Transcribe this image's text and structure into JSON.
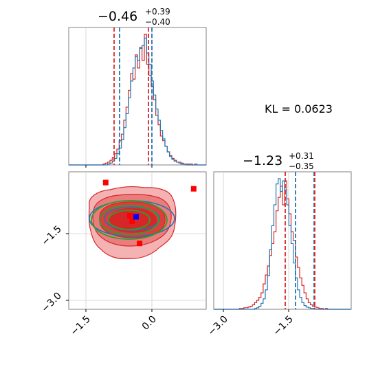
{
  "chart_data": {
    "type": "corner",
    "params": {
      "p1": {
        "title": {
          "median": "−0.46",
          "plus": "+0.39",
          "minus": "−0.40"
        },
        "xlim": [
          -2.0,
          1.0
        ],
        "xticks": [
          -1.5,
          0.0
        ]
      },
      "p2": {
        "title": {
          "median": "−1.23",
          "plus": "+0.31",
          "minus": "−0.35"
        },
        "xlim": [
          -3.2,
          0.0
        ],
        "xticks": [
          -3.0,
          -1.5
        ]
      }
    },
    "tick_labels": {
      "p1": [
        "−1.5",
        "0.0"
      ],
      "p2_x": [
        "−3.0",
        "−1.5"
      ],
      "p2_y": [
        "−1.5",
        "−3.0"
      ]
    },
    "annotation": "KL = 0.0623",
    "quantile_lines": {
      "p1": {
        "red": [
          -0.86,
          -0.07
        ],
        "blue": [
          -0.74,
          0.0
        ]
      },
      "p2": {
        "red": [
          -1.58,
          -0.92
        ],
        "blue": [
          -1.33,
          -0.92
        ]
      }
    },
    "hist1": {
      "bins": [
        -2.0,
        1.0,
        60
      ],
      "red": [
        0,
        0,
        0,
        0,
        0,
        0,
        0,
        0,
        0,
        0,
        0,
        0,
        0,
        0,
        0,
        1,
        2,
        3,
        5,
        8,
        12,
        17,
        26,
        33,
        48,
        62,
        80,
        98,
        92,
        118,
        104,
        126,
        112,
        140,
        108,
        96,
        84,
        70,
        53,
        43,
        31,
        26,
        20,
        14,
        10,
        7,
        5,
        3,
        3,
        2,
        1,
        1,
        0,
        1,
        0,
        0,
        0,
        0,
        0,
        0
      ],
      "blue": [
        0,
        0,
        0,
        0,
        0,
        0,
        0,
        0,
        0,
        0,
        0,
        0,
        0,
        0,
        0,
        0,
        0,
        1,
        2,
        4,
        7,
        12,
        18,
        27,
        40,
        55,
        72,
        90,
        104,
        116,
        112,
        125,
        128,
        136,
        120,
        108,
        90,
        75,
        60,
        48,
        37,
        28,
        20,
        14,
        9,
        6,
        4,
        3,
        2,
        1,
        1,
        0,
        1,
        0,
        0,
        1,
        0,
        0,
        0,
        0
      ]
    },
    "hist2": {
      "bins": [
        -3.2,
        0.0,
        64
      ],
      "red": [
        0,
        0,
        0,
        0,
        0,
        0,
        0,
        0,
        0,
        0,
        0,
        0,
        1,
        1,
        2,
        2,
        3,
        4,
        6,
        9,
        12,
        16,
        22,
        34,
        46,
        58,
        72,
        88,
        104,
        132,
        150,
        165,
        140,
        172,
        148,
        128,
        104,
        92,
        70,
        56,
        42,
        32,
        22,
        14,
        9,
        6,
        4,
        3,
        2,
        1,
        1,
        0,
        1,
        0,
        0,
        0,
        0,
        0,
        0,
        0,
        0,
        0,
        0,
        0
      ],
      "blue": [
        0,
        0,
        0,
        0,
        0,
        0,
        0,
        0,
        0,
        0,
        0,
        0,
        0,
        0,
        0,
        0,
        0,
        0,
        0,
        1,
        2,
        4,
        8,
        14,
        26,
        45,
        80,
        112,
        140,
        168,
        175,
        158,
        172,
        160,
        140,
        112,
        88,
        62,
        42,
        26,
        16,
        9,
        5,
        3,
        2,
        1,
        1,
        0,
        0,
        0,
        0,
        0,
        0,
        0,
        0,
        0,
        0,
        0,
        0,
        0,
        0,
        0,
        0,
        0
      ]
    },
    "markers": {
      "red": [
        [
          -1.05,
          -0.35
        ],
        [
          0.95,
          -0.49
        ],
        [
          -0.5,
          -1.1
        ],
        [
          -0.45,
          -1.22
        ],
        [
          -0.28,
          -1.72
        ]
      ],
      "blue": [
        [
          -0.36,
          -1.12
        ]
      ]
    },
    "colors": {
      "red": "#d62728",
      "blue": "#1f77b4",
      "green": "#2ca02c",
      "marker_blue": "#0000ff",
      "marker_red": "#ff0000"
    }
  }
}
